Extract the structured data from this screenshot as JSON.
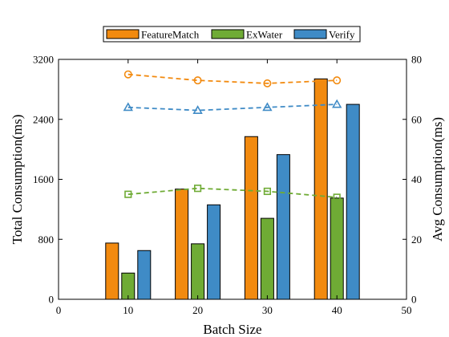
{
  "chart_data": {
    "type": "bar",
    "title": "",
    "xlabel": "Batch Size",
    "ylabel": "Total Consumption(ms)",
    "y2label": "Avg Consumption(ms)",
    "xlim": [
      0,
      50
    ],
    "ylim": [
      0,
      3200
    ],
    "y2lim": [
      0,
      80
    ],
    "x": [
      10,
      20,
      30,
      40
    ],
    "xticks": [
      0,
      10,
      20,
      30,
      40,
      50
    ],
    "yticks": [
      0,
      800,
      1600,
      2400,
      3200
    ],
    "y2ticks": [
      0,
      20,
      40,
      60,
      80
    ],
    "grid": false,
    "legend_position": "top-center",
    "series": [
      {
        "name": "FeatureMatch",
        "type": "bar",
        "axis": "left",
        "color": "#f28a0f",
        "values": [
          750,
          1470,
          2170,
          2940
        ]
      },
      {
        "name": "ExWater",
        "type": "bar",
        "axis": "left",
        "color": "#6fab35",
        "values": [
          350,
          740,
          1080,
          1350
        ]
      },
      {
        "name": "Verify",
        "type": "bar",
        "axis": "left",
        "color": "#3f8bc6",
        "values": [
          650,
          1260,
          1930,
          2600
        ]
      }
    ],
    "lines": [
      {
        "name": "FeatureMatch",
        "type": "line",
        "style": "dashed",
        "marker": "circle",
        "axis": "right",
        "color": "#f28a0f",
        "values": [
          75,
          73,
          72,
          73
        ]
      },
      {
        "name": "ExWater",
        "type": "line",
        "style": "dashed",
        "marker": "square",
        "axis": "right",
        "color": "#6fab35",
        "values": [
          35,
          37,
          36,
          34
        ]
      },
      {
        "name": "Verify",
        "type": "line",
        "style": "dashed",
        "marker": "triangle",
        "axis": "right",
        "color": "#3f8bc6",
        "values": [
          64,
          63,
          64,
          65
        ]
      }
    ]
  }
}
